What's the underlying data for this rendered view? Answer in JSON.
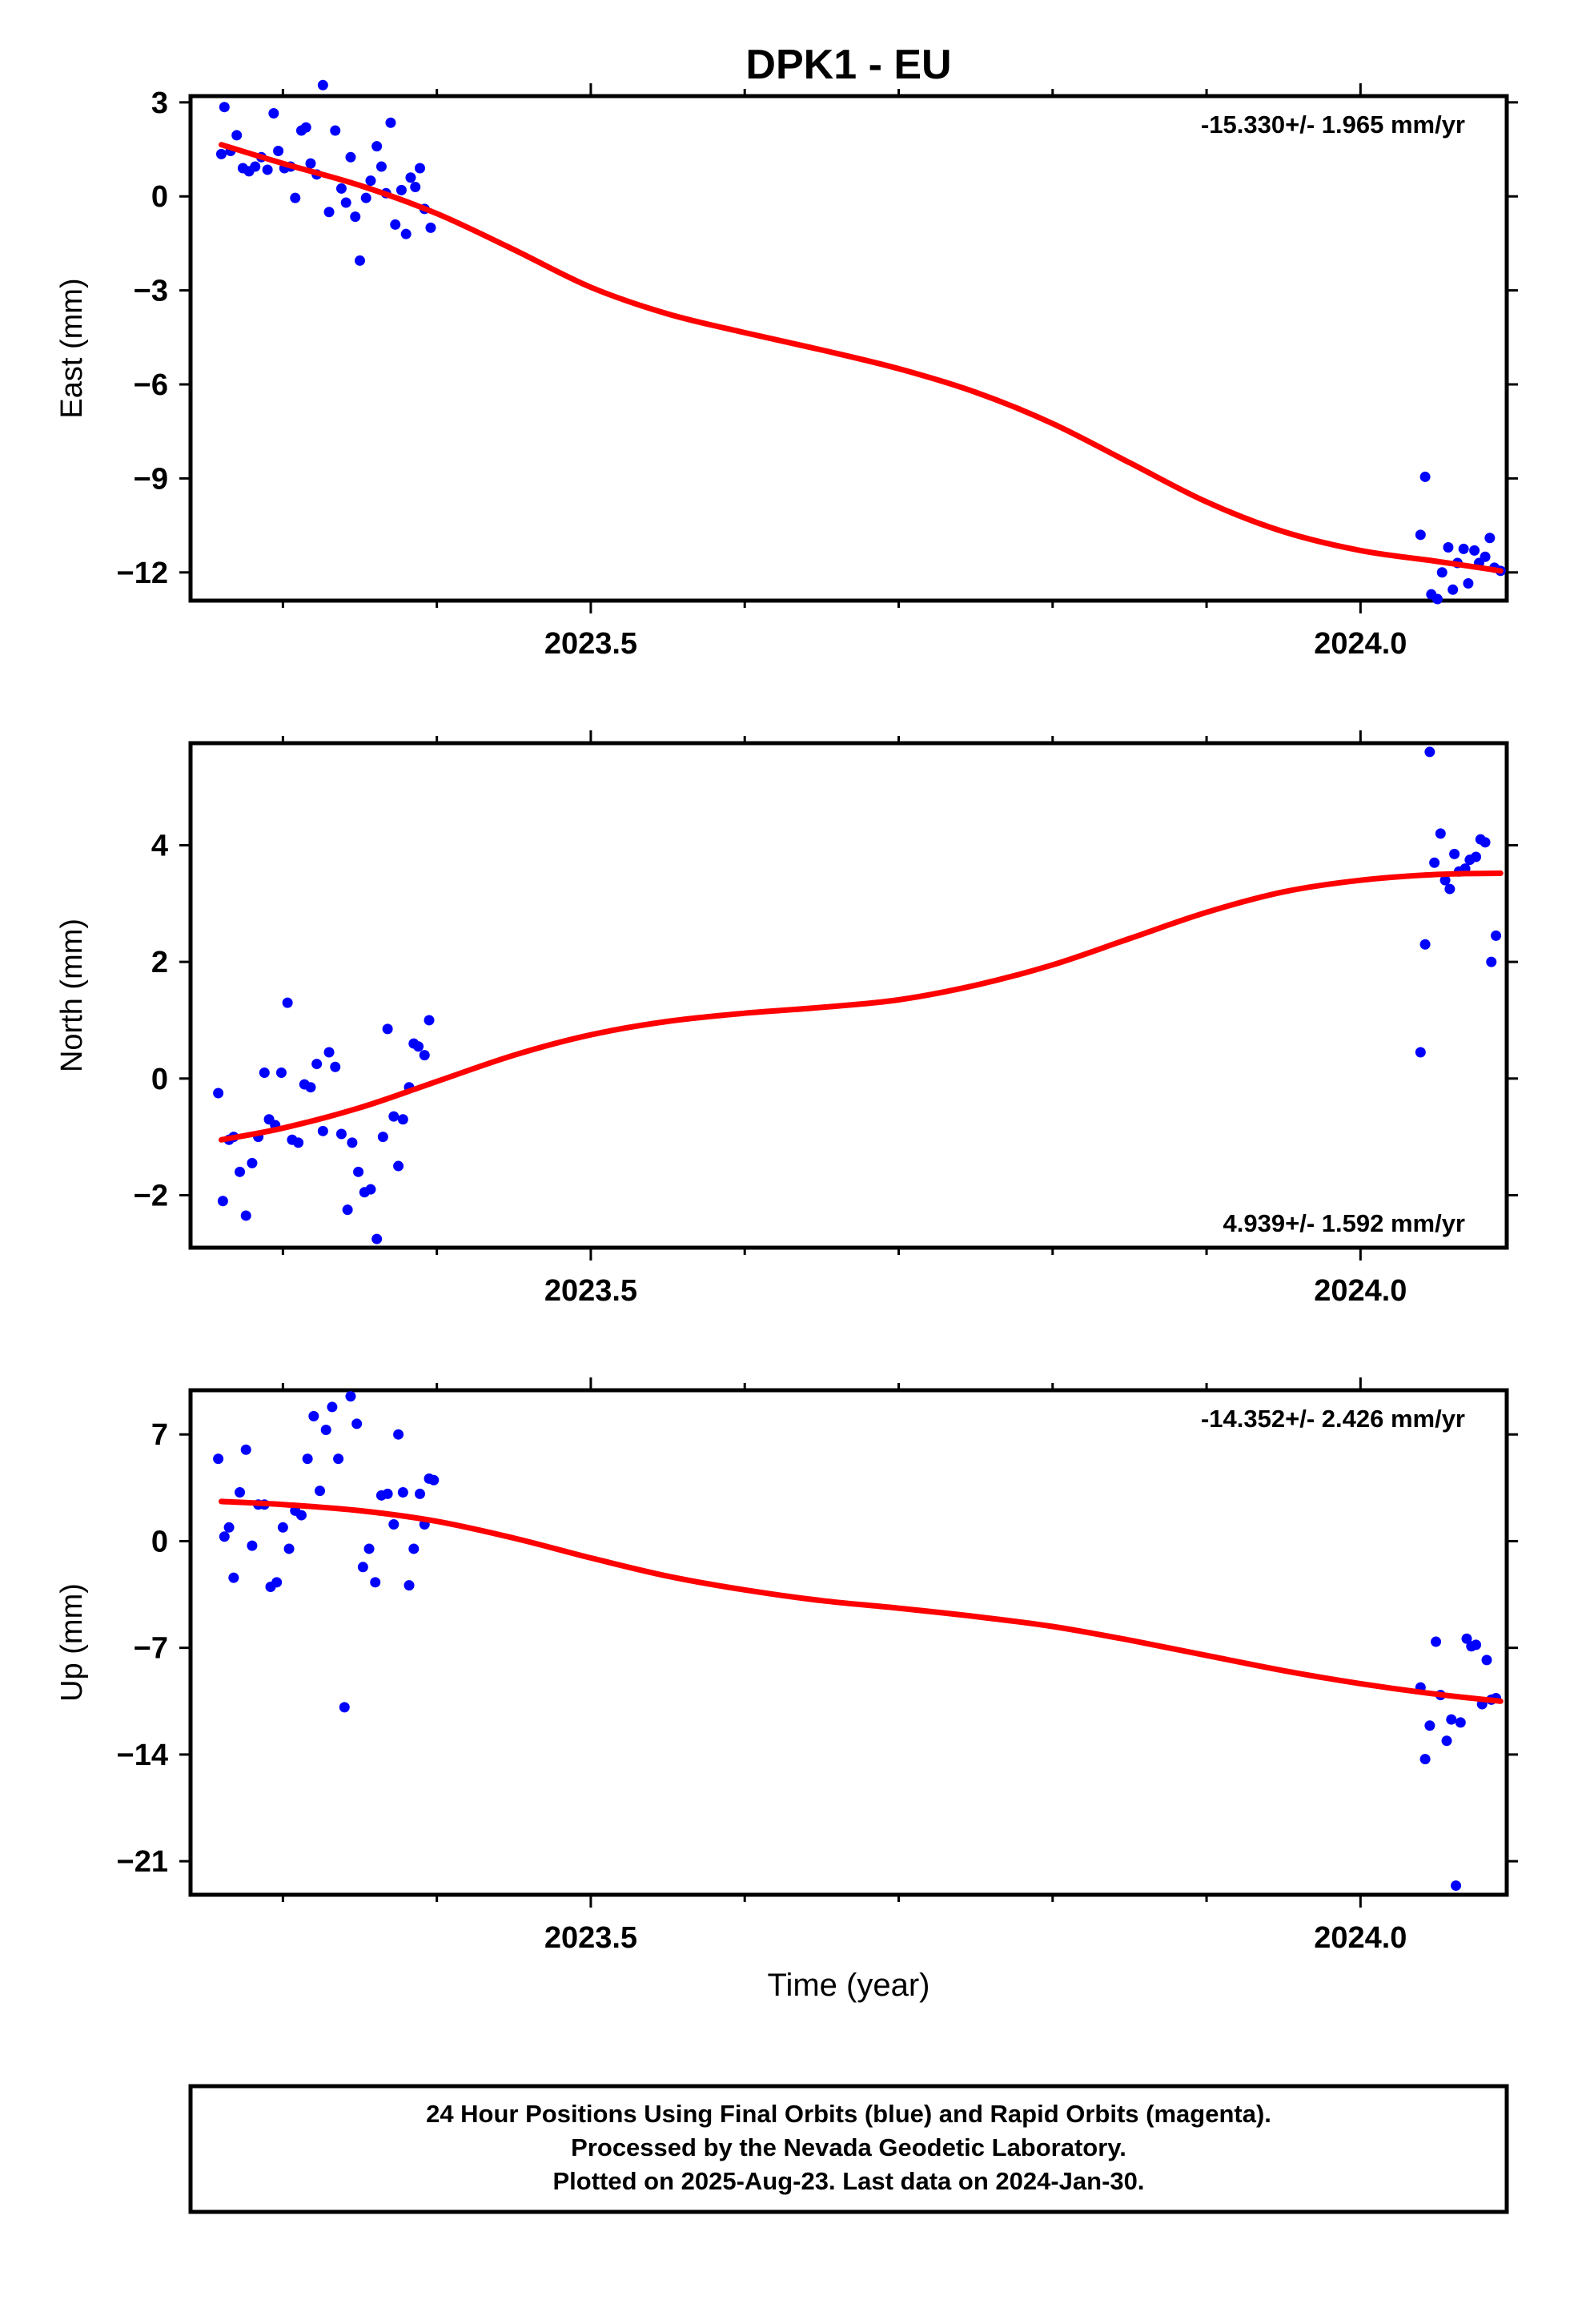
{
  "chart_data": {
    "type": "scatter",
    "title": "DPK1 - EU",
    "xlabel": "Time (year)",
    "xlim": [
      2023.24,
      2024.095
    ],
    "x_major_ticks": [
      2023.5,
      2024.0
    ],
    "x_major_tick_labels": [
      "2023.5",
      "2024.0"
    ],
    "x_minor_ticks": [
      2023.3,
      2023.4,
      2023.6,
      2023.7,
      2023.8,
      2023.9
    ],
    "point_color": "#0000ff",
    "fit_color": "#ff0000",
    "panels": [
      {
        "ylabel": "East (mm)",
        "ylim": [
          -12.9,
          3.2
        ],
        "yticks": [
          3,
          0,
          -3,
          -6,
          -9,
          -12
        ],
        "ytick_labels": [
          "3",
          "0",
          "−3",
          "−6",
          "−9",
          "−12"
        ],
        "rate_text": "-15.330+/- 1.965 mm/yr",
        "rate_position": "top-right",
        "points": [
          [
            2023.26,
            1.35
          ],
          [
            2023.262,
            2.85
          ],
          [
            2023.266,
            1.45
          ],
          [
            2023.27,
            1.95
          ],
          [
            2023.274,
            0.9
          ],
          [
            2023.278,
            0.8
          ],
          [
            2023.282,
            0.95
          ],
          [
            2023.286,
            1.25
          ],
          [
            2023.29,
            0.85
          ],
          [
            2023.294,
            2.65
          ],
          [
            2023.297,
            1.45
          ],
          [
            2023.301,
            0.9
          ],
          [
            2023.305,
            0.95
          ],
          [
            2023.308,
            -0.05
          ],
          [
            2023.312,
            2.1
          ],
          [
            2023.315,
            2.2
          ],
          [
            2023.318,
            1.05
          ],
          [
            2023.322,
            0.7
          ],
          [
            2023.326,
            3.55
          ],
          [
            2023.33,
            -0.5
          ],
          [
            2023.334,
            2.1
          ],
          [
            2023.338,
            0.25
          ],
          [
            2023.341,
            -0.2
          ],
          [
            2023.344,
            1.25
          ],
          [
            2023.347,
            -0.65
          ],
          [
            2023.35,
            -2.05
          ],
          [
            2023.354,
            -0.05
          ],
          [
            2023.357,
            0.5
          ],
          [
            2023.361,
            1.6
          ],
          [
            2023.364,
            0.95
          ],
          [
            2023.367,
            0.1
          ],
          [
            2023.37,
            2.35
          ],
          [
            2023.373,
            -0.9
          ],
          [
            2023.377,
            0.2
          ],
          [
            2023.38,
            -1.2
          ],
          [
            2023.383,
            0.6
          ],
          [
            2023.386,
            0.3
          ],
          [
            2023.389,
            0.9
          ],
          [
            2023.392,
            -0.4
          ],
          [
            2023.396,
            -1.0
          ],
          [
            2024.039,
            -10.8
          ],
          [
            2024.042,
            -8.95
          ],
          [
            2024.046,
            -12.7
          ],
          [
            2024.05,
            -12.85
          ],
          [
            2024.053,
            -12.0
          ],
          [
            2024.057,
            -11.2
          ],
          [
            2024.06,
            -12.55
          ],
          [
            2024.063,
            -11.7
          ],
          [
            2024.067,
            -11.25
          ],
          [
            2024.07,
            -12.35
          ],
          [
            2024.074,
            -11.3
          ],
          [
            2024.077,
            -11.7
          ],
          [
            2024.081,
            -11.5
          ],
          [
            2024.084,
            -10.9
          ],
          [
            2024.087,
            -11.85
          ],
          [
            2024.091,
            -11.95
          ]
        ],
        "fit": [
          [
            2023.26,
            1.65
          ],
          [
            2023.3,
            1.05
          ],
          [
            2023.35,
            0.35
          ],
          [
            2023.4,
            -0.55
          ],
          [
            2023.45,
            -1.7
          ],
          [
            2023.5,
            -2.9
          ],
          [
            2023.55,
            -3.75
          ],
          [
            2023.6,
            -4.35
          ],
          [
            2023.65,
            -4.9
          ],
          [
            2023.7,
            -5.5
          ],
          [
            2023.75,
            -6.25
          ],
          [
            2023.8,
            -7.25
          ],
          [
            2023.85,
            -8.5
          ],
          [
            2023.9,
            -9.75
          ],
          [
            2023.95,
            -10.7
          ],
          [
            2024.0,
            -11.3
          ],
          [
            2024.05,
            -11.65
          ],
          [
            2024.091,
            -11.95
          ]
        ]
      },
      {
        "ylabel": "North (mm)",
        "ylim": [
          -2.9,
          5.75
        ],
        "yticks": [
          4,
          2,
          0,
          -2
        ],
        "ytick_labels": [
          "4",
          "2",
          "0",
          "−2"
        ],
        "rate_text": "4.939+/- 1.592 mm/yr",
        "rate_position": "bottom-right",
        "points": [
          [
            2023.258,
            -0.25
          ],
          [
            2023.261,
            -2.1
          ],
          [
            2023.265,
            -1.05
          ],
          [
            2023.268,
            -1.0
          ],
          [
            2023.272,
            -1.6
          ],
          [
            2023.276,
            -2.35
          ],
          [
            2023.28,
            -1.45
          ],
          [
            2023.284,
            -1.0
          ],
          [
            2023.288,
            0.1
          ],
          [
            2023.291,
            -0.7
          ],
          [
            2023.295,
            -0.8
          ],
          [
            2023.299,
            0.1
          ],
          [
            2023.303,
            1.3
          ],
          [
            2023.306,
            -1.05
          ],
          [
            2023.31,
            -1.1
          ],
          [
            2023.314,
            -0.1
          ],
          [
            2023.318,
            -0.15
          ],
          [
            2023.322,
            0.25
          ],
          [
            2023.326,
            -0.9
          ],
          [
            2023.33,
            0.45
          ],
          [
            2023.334,
            0.2
          ],
          [
            2023.338,
            -0.95
          ],
          [
            2023.342,
            -2.25
          ],
          [
            2023.345,
            -1.1
          ],
          [
            2023.349,
            -1.6
          ],
          [
            2023.353,
            -1.95
          ],
          [
            2023.357,
            -1.9
          ],
          [
            2023.361,
            -2.75
          ],
          [
            2023.365,
            -1.0
          ],
          [
            2023.368,
            0.85
          ],
          [
            2023.372,
            -0.65
          ],
          [
            2023.375,
            -1.5
          ],
          [
            2023.378,
            -0.7
          ],
          [
            2023.382,
            -0.15
          ],
          [
            2023.385,
            0.6
          ],
          [
            2023.388,
            0.55
          ],
          [
            2023.392,
            0.4
          ],
          [
            2023.395,
            1.0
          ],
          [
            2024.039,
            0.45
          ],
          [
            2024.042,
            2.3
          ],
          [
            2024.045,
            5.6
          ],
          [
            2024.048,
            3.7
          ],
          [
            2024.052,
            4.2
          ],
          [
            2024.055,
            3.4
          ],
          [
            2024.058,
            3.25
          ],
          [
            2024.061,
            3.85
          ],
          [
            2024.064,
            3.55
          ],
          [
            2024.068,
            3.6
          ],
          [
            2024.071,
            3.75
          ],
          [
            2024.075,
            3.8
          ],
          [
            2024.078,
            4.1
          ],
          [
            2024.081,
            4.05
          ],
          [
            2024.085,
            2.0
          ],
          [
            2024.088,
            2.45
          ]
        ],
        "fit": [
          [
            2023.26,
            -1.05
          ],
          [
            2023.3,
            -0.85
          ],
          [
            2023.35,
            -0.5
          ],
          [
            2023.4,
            -0.05
          ],
          [
            2023.45,
            0.4
          ],
          [
            2023.5,
            0.75
          ],
          [
            2023.55,
            0.98
          ],
          [
            2023.6,
            1.12
          ],
          [
            2023.65,
            1.22
          ],
          [
            2023.7,
            1.35
          ],
          [
            2023.75,
            1.6
          ],
          [
            2023.8,
            1.95
          ],
          [
            2023.85,
            2.4
          ],
          [
            2023.9,
            2.85
          ],
          [
            2023.95,
            3.2
          ],
          [
            2024.0,
            3.4
          ],
          [
            2024.05,
            3.5
          ],
          [
            2024.091,
            3.52
          ]
        ]
      },
      {
        "ylabel": "Up (mm)",
        "ylim": [
          -23.2,
          9.9
        ],
        "yticks": [
          7,
          0,
          -7,
          -14,
          -21
        ],
        "ytick_labels": [
          "7",
          "0",
          "−7",
          "−14",
          "−21"
        ],
        "rate_text": "-14.352+/- 2.426 mm/yr",
        "rate_position": "top-right",
        "points": [
          [
            2023.258,
            5.4
          ],
          [
            2023.262,
            0.3
          ],
          [
            2023.265,
            0.9
          ],
          [
            2023.268,
            -2.4
          ],
          [
            2023.272,
            3.2
          ],
          [
            2023.276,
            6.0
          ],
          [
            2023.28,
            -0.3
          ],
          [
            2023.284,
            2.4
          ],
          [
            2023.288,
            2.4
          ],
          [
            2023.292,
            -3.0
          ],
          [
            2023.296,
            -2.7
          ],
          [
            2023.3,
            0.9
          ],
          [
            2023.304,
            -0.5
          ],
          [
            2023.308,
            2.0
          ],
          [
            2023.312,
            1.7
          ],
          [
            2023.316,
            5.4
          ],
          [
            2023.32,
            8.2
          ],
          [
            2023.324,
            3.3
          ],
          [
            2023.328,
            7.3
          ],
          [
            2023.332,
            8.8
          ],
          [
            2023.336,
            5.4
          ],
          [
            2023.34,
            -10.9
          ],
          [
            2023.344,
            9.5
          ],
          [
            2023.348,
            7.7
          ],
          [
            2023.352,
            -1.7
          ],
          [
            2023.356,
            -0.5
          ],
          [
            2023.36,
            -2.7
          ],
          [
            2023.364,
            3.0
          ],
          [
            2023.368,
            3.1
          ],
          [
            2023.372,
            1.1
          ],
          [
            2023.375,
            7.0
          ],
          [
            2023.378,
            3.2
          ],
          [
            2023.382,
            -2.9
          ],
          [
            2023.385,
            -0.5
          ],
          [
            2023.389,
            3.1
          ],
          [
            2023.392,
            1.1
          ],
          [
            2023.395,
            4.1
          ],
          [
            2023.398,
            4.0
          ],
          [
            2024.039,
            -9.6
          ],
          [
            2024.042,
            -14.3
          ],
          [
            2024.045,
            -12.1
          ],
          [
            2024.049,
            -6.6
          ],
          [
            2024.052,
            -10.1
          ],
          [
            2024.056,
            -13.1
          ],
          [
            2024.059,
            -11.7
          ],
          [
            2024.062,
            -22.6
          ],
          [
            2024.065,
            -11.9
          ],
          [
            2024.069,
            -6.4
          ],
          [
            2024.072,
            -6.9
          ],
          [
            2024.075,
            -6.8
          ],
          [
            2024.079,
            -10.7
          ],
          [
            2024.082,
            -7.8
          ],
          [
            2024.085,
            -10.4
          ],
          [
            2024.088,
            -10.3
          ]
        ],
        "fit": [
          [
            2023.26,
            2.6
          ],
          [
            2023.3,
            2.4
          ],
          [
            2023.35,
            2.0
          ],
          [
            2023.4,
            1.3
          ],
          [
            2023.45,
            0.2
          ],
          [
            2023.5,
            -1.1
          ],
          [
            2023.55,
            -2.3
          ],
          [
            2023.6,
            -3.2
          ],
          [
            2023.65,
            -3.9
          ],
          [
            2023.7,
            -4.4
          ],
          [
            2023.75,
            -4.95
          ],
          [
            2023.8,
            -5.6
          ],
          [
            2023.85,
            -6.5
          ],
          [
            2023.9,
            -7.5
          ],
          [
            2023.95,
            -8.5
          ],
          [
            2024.0,
            -9.35
          ],
          [
            2024.05,
            -10.05
          ],
          [
            2024.091,
            -10.5
          ]
        ]
      }
    ]
  },
  "footer": {
    "line1": "24 Hour Positions Using Final Orbits (blue) and Rapid Orbits (magenta).",
    "line2": "Processed by the Nevada Geodetic Laboratory.",
    "line3": "Plotted on 2025-Aug-23. Last data on 2024-Jan-30."
  }
}
